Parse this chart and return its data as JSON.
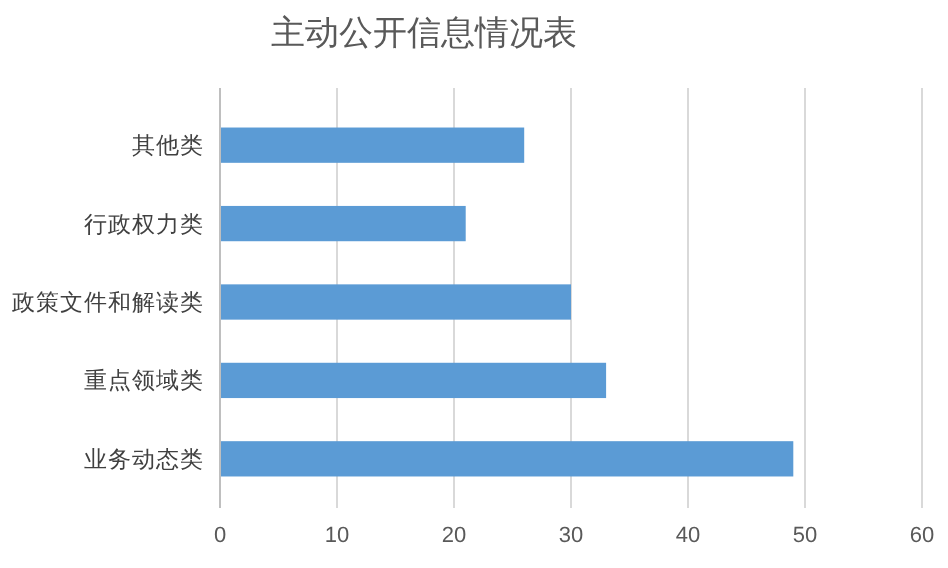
{
  "chart_data": {
    "type": "bar",
    "orientation": "horizontal",
    "title": "主动公开信息情况表",
    "categories": [
      "其他类",
      "行政权力类",
      "政策文件和解读类",
      "重点领域类",
      "业务动态类"
    ],
    "values": [
      26,
      21,
      30,
      33,
      49
    ],
    "color": "#5b9bd5",
    "xlim": [
      0,
      60
    ],
    "xticks": [
      0,
      10,
      20,
      30,
      40,
      50,
      60
    ],
    "grid": "x"
  }
}
